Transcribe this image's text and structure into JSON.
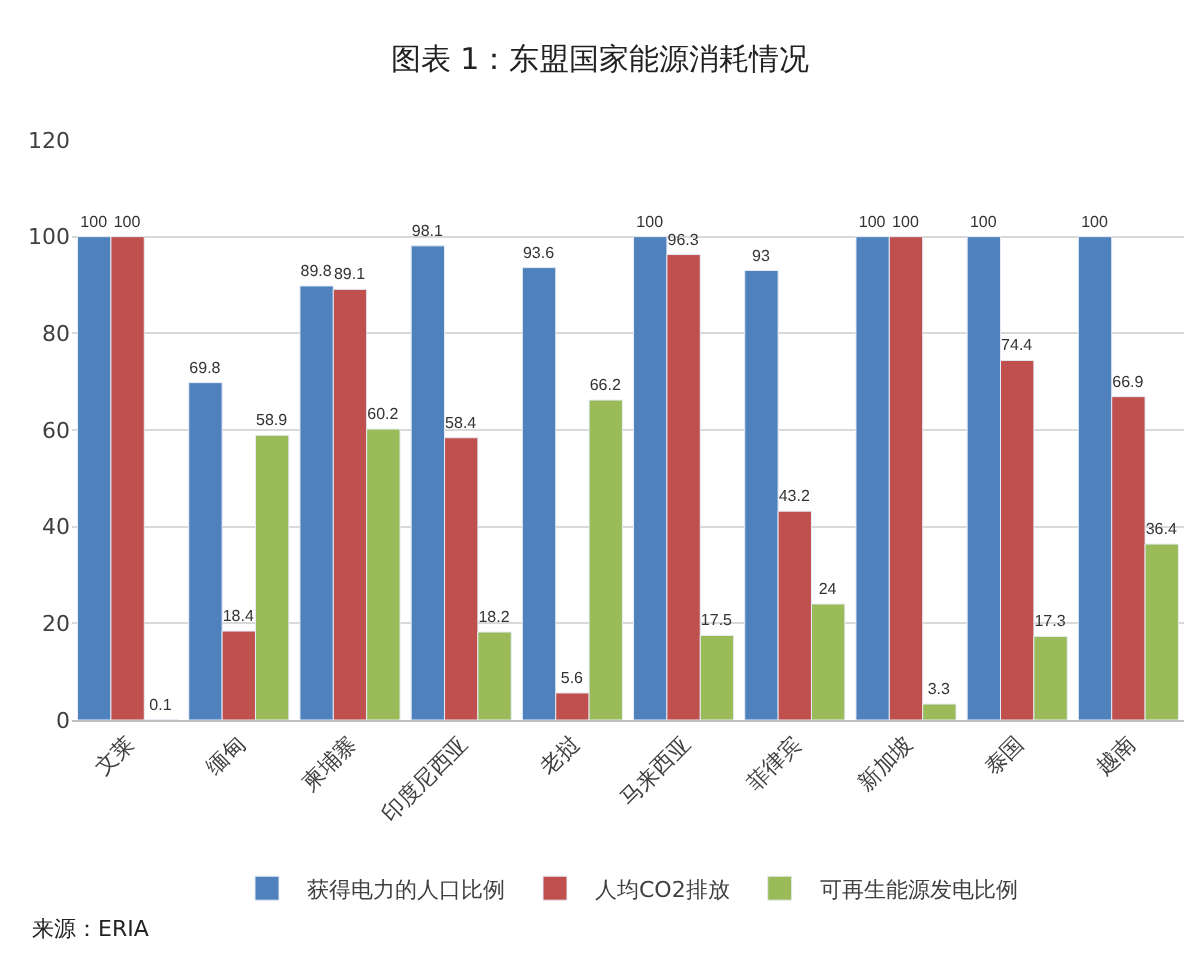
{
  "chart_data": {
    "type": "bar",
    "title": "图表 1：东盟国家能源消耗情况",
    "categories": [
      "文莱",
      "缅甸",
      "柬埔寨",
      "印度尼西亚",
      "老挝",
      "马来西亚",
      "菲律宾",
      "新加坡",
      "泰国",
      "越南"
    ],
    "series": [
      {
        "name": "获得电力的人口比例",
        "color": "#4f81bd",
        "values": [
          100,
          69.8,
          89.8,
          98.1,
          93.6,
          100,
          93,
          100,
          100,
          100
        ]
      },
      {
        "name": "人均CO2排放",
        "color": "#c0504d",
        "values": [
          100,
          18.4,
          89.1,
          58.4,
          5.6,
          96.3,
          43.2,
          100,
          74.4,
          66.9
        ]
      },
      {
        "name": "可再生能源发电比例",
        "color": "#9bbb59",
        "values": [
          0.1,
          58.9,
          60.2,
          18.2,
          66.2,
          17.5,
          24,
          3.3,
          17.3,
          36.4
        ]
      }
    ],
    "ylim": [
      0,
      120
    ],
    "yticks": [
      0,
      20,
      40,
      60,
      80,
      100,
      120
    ],
    "grid": "y",
    "legend": "bottom",
    "data_labels": true,
    "annotations": [
      "来源：ERIA"
    ]
  }
}
